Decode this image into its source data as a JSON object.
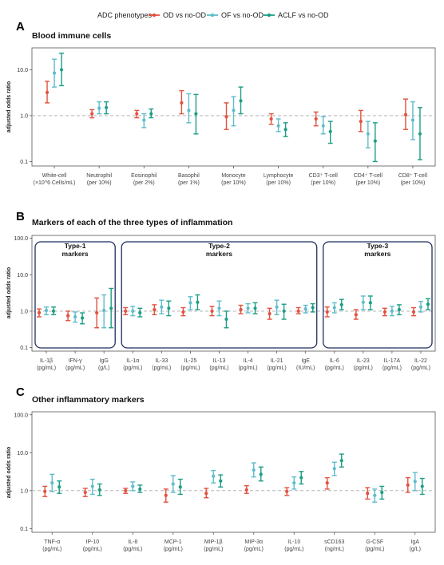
{
  "legend": {
    "title": "ADC phenotypes",
    "entries": [
      {
        "name": "OD vs no-OD",
        "color": "#E2513E"
      },
      {
        "name": "OF vs no-OD",
        "color": "#5DBCCB"
      },
      {
        "name": "ACLF vs no-OD",
        "color": "#1A9E86"
      }
    ]
  },
  "chart_data": [
    {
      "type": "forest",
      "panel_label": "A",
      "title": "Blood immune cells",
      "ylabel": "adjusted odds ratio",
      "yscale": "log",
      "ylim": [
        0.08,
        30
      ],
      "yticks": [
        0.1,
        1.0,
        10.0
      ],
      "ytick_labels": [
        "0.1",
        "1.0",
        "10.0"
      ],
      "reference_line": 1.0,
      "series": [
        "OD vs no-OD",
        "OF vs no-OD",
        "ACLF vs no-OD"
      ],
      "categories": [
        {
          "label": "White-cell",
          "unit": "(×10^6 Cells/mL)"
        },
        {
          "label": "Neutrophil",
          "unit": "(per 10%)"
        },
        {
          "label": "Eosinophil",
          "unit": "(per 2%)"
        },
        {
          "label": "Basophil",
          "unit": "(per 1%)"
        },
        {
          "label": "Monocyte",
          "unit": "(per 10%)"
        },
        {
          "label": "Lymphocyte",
          "unit": "(per 10%)"
        },
        {
          "label": "CD3⁺ T-cell",
          "unit": "(per 10%)"
        },
        {
          "label": "CD4⁺ T-cell",
          "unit": "(per 10%)"
        },
        {
          "label": "CD8⁺ T-cell",
          "unit": "(per 10%)"
        }
      ],
      "estimates": [
        [
          [
            3.2,
            1.9,
            5.6
          ],
          [
            8.5,
            4.2,
            17
          ],
          [
            10,
            4.5,
            23
          ]
        ],
        [
          [
            1.1,
            0.9,
            1.35
          ],
          [
            1.45,
            1.1,
            2.0
          ],
          [
            1.5,
            1.1,
            2.0
          ]
        ],
        [
          [
            1.1,
            0.9,
            1.3
          ],
          [
            0.8,
            0.55,
            1.1
          ],
          [
            1.1,
            0.9,
            1.4
          ]
        ],
        [
          [
            1.9,
            1.1,
            3.5
          ],
          [
            1.3,
            0.7,
            3.0
          ],
          [
            1.1,
            0.4,
            2.9
          ]
        ],
        [
          [
            0.95,
            0.5,
            1.9
          ],
          [
            1.3,
            0.6,
            2.6
          ],
          [
            2.1,
            1.1,
            4.2
          ]
        ],
        [
          [
            0.85,
            0.65,
            1.1
          ],
          [
            0.6,
            0.45,
            0.85
          ],
          [
            0.5,
            0.35,
            0.7
          ]
        ],
        [
          [
            0.85,
            0.6,
            1.2
          ],
          [
            0.6,
            0.4,
            0.95
          ],
          [
            0.45,
            0.25,
            0.75
          ]
        ],
        [
          [
            0.75,
            0.45,
            1.3
          ],
          [
            0.4,
            0.2,
            0.75
          ],
          [
            0.28,
            0.1,
            0.7
          ]
        ],
        [
          [
            1.05,
            0.5,
            2.3
          ],
          [
            0.8,
            0.3,
            2.0
          ],
          [
            0.4,
            0.11,
            1.5
          ]
        ]
      ]
    },
    {
      "type": "forest",
      "panel_label": "B",
      "title": "Markers of each of the three types of inflammation",
      "ylabel": "adjusted odds ratio",
      "yscale": "log",
      "ylim": [
        0.08,
        120
      ],
      "yticks": [
        0.1,
        1.0,
        10.0,
        100.0
      ],
      "ytick_labels": [
        "0.1",
        "1.0",
        "10.0",
        "100.0"
      ],
      "reference_line": 1.0,
      "series": [
        "OD vs no-OD",
        "OF vs no-OD",
        "ACLF vs no-OD"
      ],
      "groups": [
        {
          "title": "Type-1 markers",
          "lines": [
            "Type-1",
            "markers"
          ],
          "from": 0,
          "to": 2
        },
        {
          "title": "Type-2 markers",
          "lines": [
            "Type-2",
            "markers"
          ],
          "from": 3,
          "to": 9
        },
        {
          "title": "Type-3 markers",
          "lines": [
            "Type-3",
            "markers"
          ],
          "from": 10,
          "to": 13
        }
      ],
      "categories": [
        {
          "label": "IL-1β",
          "unit": "(pg/mL)"
        },
        {
          "label": "IFN-γ",
          "unit": "(pg/mL)"
        },
        {
          "label": "IgG",
          "unit": "(g/L)"
        },
        {
          "label": "IL-1α",
          "unit": "(pg/mL)"
        },
        {
          "label": "IL-33",
          "unit": "(pg/mL)"
        },
        {
          "label": "IL-25",
          "unit": "(pg/mL)"
        },
        {
          "label": "IL-13",
          "unit": "(pg/mL)"
        },
        {
          "label": "IL-4",
          "unit": "(pg/mL)"
        },
        {
          "label": "IL-21",
          "unit": "(pg/mL)"
        },
        {
          "label": "IgE",
          "unit": "(IU/mL)"
        },
        {
          "label": "IL-6",
          "unit": "(pg/mL)"
        },
        {
          "label": "IL-23",
          "unit": "(pg/mL)"
        },
        {
          "label": "IL-17A",
          "unit": "(pg/mL)"
        },
        {
          "label": "IL-22",
          "unit": "(pg/mL)"
        }
      ],
      "estimates": [
        [
          [
            0.9,
            0.7,
            1.15
          ],
          [
            1.05,
            0.8,
            1.3
          ],
          [
            1.0,
            0.8,
            1.3
          ]
        ],
        [
          [
            0.75,
            0.55,
            1.0
          ],
          [
            0.7,
            0.5,
            0.95
          ],
          [
            0.65,
            0.45,
            0.9
          ]
        ],
        [
          [
            0.9,
            0.35,
            2.3
          ],
          [
            1.05,
            0.35,
            2.8
          ],
          [
            1.2,
            0.35,
            4.2
          ]
        ],
        [
          [
            1.0,
            0.8,
            1.25
          ],
          [
            1.0,
            0.75,
            1.35
          ],
          [
            0.9,
            0.7,
            1.2
          ]
        ],
        [
          [
            1.1,
            0.8,
            1.5
          ],
          [
            1.3,
            0.85,
            2.0
          ],
          [
            1.2,
            0.75,
            1.9
          ]
        ],
        [
          [
            0.95,
            0.75,
            1.25
          ],
          [
            1.7,
            1.1,
            2.5
          ],
          [
            1.75,
            1.1,
            2.8
          ]
        ],
        [
          [
            1.0,
            0.75,
            1.35
          ],
          [
            1.2,
            0.75,
            1.9
          ],
          [
            0.6,
            0.35,
            1.0
          ]
        ],
        [
          [
            1.1,
            0.85,
            1.45
          ],
          [
            1.2,
            0.9,
            1.6
          ],
          [
            1.2,
            0.85,
            1.7
          ]
        ],
        [
          [
            0.85,
            0.6,
            1.2
          ],
          [
            1.3,
            0.8,
            2.0
          ],
          [
            1.0,
            0.6,
            1.55
          ]
        ],
        [
          [
            1.0,
            0.85,
            1.25
          ],
          [
            1.15,
            0.9,
            1.45
          ],
          [
            1.25,
            0.95,
            1.6
          ]
        ],
        [
          [
            0.95,
            0.7,
            1.3
          ],
          [
            1.25,
            0.9,
            1.7
          ],
          [
            1.5,
            1.1,
            2.1
          ]
        ],
        [
          [
            0.8,
            0.6,
            1.1
          ],
          [
            1.75,
            1.1,
            2.6
          ],
          [
            1.7,
            1.1,
            2.6
          ]
        ],
        [
          [
            0.95,
            0.75,
            1.2
          ],
          [
            1.0,
            0.75,
            1.35
          ],
          [
            1.1,
            0.8,
            1.5
          ]
        ],
        [
          [
            0.95,
            0.75,
            1.25
          ],
          [
            1.3,
            0.95,
            1.85
          ],
          [
            1.55,
            1.1,
            2.2
          ]
        ]
      ]
    },
    {
      "type": "forest",
      "panel_label": "C",
      "title": "Other inflammatory markers",
      "ylabel": "adjusted odds ratio",
      "yscale": "log",
      "ylim": [
        0.08,
        120
      ],
      "yticks": [
        0.1,
        1.0,
        10.0,
        100.0
      ],
      "ytick_labels": [
        "0.1",
        "1.0",
        "10.0",
        "100.0"
      ],
      "reference_line": 1.0,
      "series": [
        "OD vs no-OD",
        "OF vs no-OD",
        "ACLF vs no-OD"
      ],
      "categories": [
        {
          "label": "TNF-α",
          "unit": "(pg/mL)"
        },
        {
          "label": "IP-10",
          "unit": "(pg/mL)"
        },
        {
          "label": "IL-8",
          "unit": "(pg/mL)"
        },
        {
          "label": "MCP-1",
          "unit": "(pg/mL)"
        },
        {
          "label": "MIP-1β",
          "unit": "(pg/mL)"
        },
        {
          "label": "MIP-3α",
          "unit": "(pg/mL)"
        },
        {
          "label": "IL-10",
          "unit": "(pg/mL)"
        },
        {
          "label": "sCD163",
          "unit": "(ng/mL)"
        },
        {
          "label": "G-CSF",
          "unit": "(pg/mL)"
        },
        {
          "label": "IgA",
          "unit": "(g/L)"
        }
      ],
      "estimates": [
        [
          [
            0.95,
            0.7,
            1.3
          ],
          [
            1.6,
            0.95,
            2.7
          ],
          [
            1.25,
            0.85,
            1.8
          ]
        ],
        [
          [
            0.9,
            0.7,
            1.15
          ],
          [
            1.3,
            0.8,
            2.0
          ],
          [
            1.05,
            0.75,
            1.5
          ]
        ],
        [
          [
            1.0,
            0.85,
            1.15
          ],
          [
            1.3,
            1.0,
            1.7
          ],
          [
            1.1,
            0.9,
            1.4
          ]
        ],
        [
          [
            0.75,
            0.5,
            1.1
          ],
          [
            1.5,
            0.9,
            2.5
          ],
          [
            1.25,
            0.8,
            2.0
          ]
        ],
        [
          [
            0.85,
            0.65,
            1.15
          ],
          [
            2.4,
            1.6,
            3.4
          ],
          [
            1.8,
            1.25,
            2.6
          ]
        ],
        [
          [
            1.05,
            0.85,
            1.35
          ],
          [
            3.5,
            2.3,
            5.4
          ],
          [
            2.7,
            1.8,
            4.2
          ]
        ],
        [
          [
            0.95,
            0.75,
            1.2
          ],
          [
            1.6,
            1.1,
            2.3
          ],
          [
            2.2,
            1.5,
            3.2
          ]
        ],
        [
          [
            1.6,
            1.1,
            2.2
          ],
          [
            3.8,
            2.5,
            5.6
          ],
          [
            6.2,
            4.2,
            9.2
          ]
        ],
        [
          [
            0.85,
            0.6,
            1.2
          ],
          [
            0.75,
            0.5,
            1.1
          ],
          [
            0.9,
            0.6,
            1.3
          ]
        ],
        [
          [
            1.4,
            0.9,
            2.2
          ],
          [
            1.75,
            1.0,
            3.0
          ],
          [
            1.3,
            0.8,
            2.1
          ]
        ]
      ]
    }
  ]
}
